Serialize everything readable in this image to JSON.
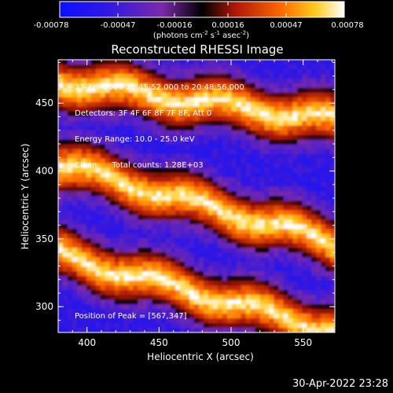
{
  "colorbar": {
    "ticks": [
      "-0.00078",
      "-0.00047",
      "-0.00016",
      "0.00016",
      "0.00047",
      "0.00078"
    ],
    "units_prefix": "(photons cm",
    "units_exp1": "-2",
    "units_mid": " s",
    "units_exp2": "-1",
    "units_mid2": " asec",
    "units_exp3": "-2",
    "units_suffix": ")"
  },
  "image": {
    "title": "Reconstructed RHESSI Image",
    "info_lines": [
      "23-Apr-2003 20:45:52.000 to 20:48:56.000",
      "Detectors: 3F 4F 6F 8F 7F 8F, Att 0",
      "Energy Range: 10.0 - 25.0 keV",
      "Clean      Total counts: 1.28E+03"
    ],
    "peak_label": "Position of Peak = [567,347]",
    "timestamp": "30-Apr-2022 23:28"
  },
  "chart_data": {
    "type": "heatmap",
    "title": "Reconstructed RHESSI Image",
    "xlabel": "Heliocentric X (arcsec)",
    "ylabel": "Heliocentric Y (arcsec)",
    "xlim": [
      380,
      572
    ],
    "ylim": [
      281,
      482
    ],
    "x_ticks": [
      400,
      450,
      500,
      550
    ],
    "y_ticks": [
      300,
      350,
      400,
      450
    ],
    "colorscale_range": [
      -0.00078,
      0.00078
    ],
    "peak": [
      567,
      347
    ],
    "bright_bands_center_y_at_x": [
      {
        "x_left": 380,
        "x_right": 572,
        "y_left": 466,
        "y_right": 437
      },
      {
        "x_left": 380,
        "x_right": 572,
        "y_left": 405,
        "y_right": 347
      },
      {
        "x_left": 380,
        "x_right": 572,
        "y_left": 338,
        "y_right": 282
      }
    ]
  }
}
